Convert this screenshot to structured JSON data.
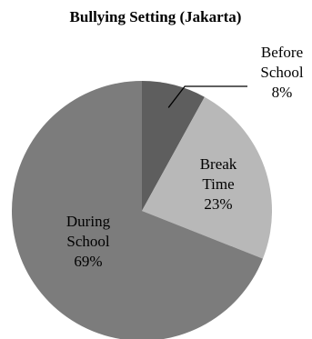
{
  "chart_data": {
    "type": "pie",
    "title": "Bullying Setting (Jakarta)",
    "categories": [
      "Before School",
      "Break Time",
      "During School"
    ],
    "values": [
      8,
      23,
      69
    ],
    "value_labels": [
      "8%",
      "23%",
      "69%"
    ],
    "label_lines": [
      [
        "Before",
        "School"
      ],
      [
        "Break",
        "Time"
      ],
      [
        "During",
        "School"
      ]
    ],
    "colors": [
      "#5e5e5e",
      "#b8b8b8",
      "#7c7c7c"
    ],
    "start_angle_deg": 0,
    "direction": "clockwise",
    "legend": "none"
  }
}
